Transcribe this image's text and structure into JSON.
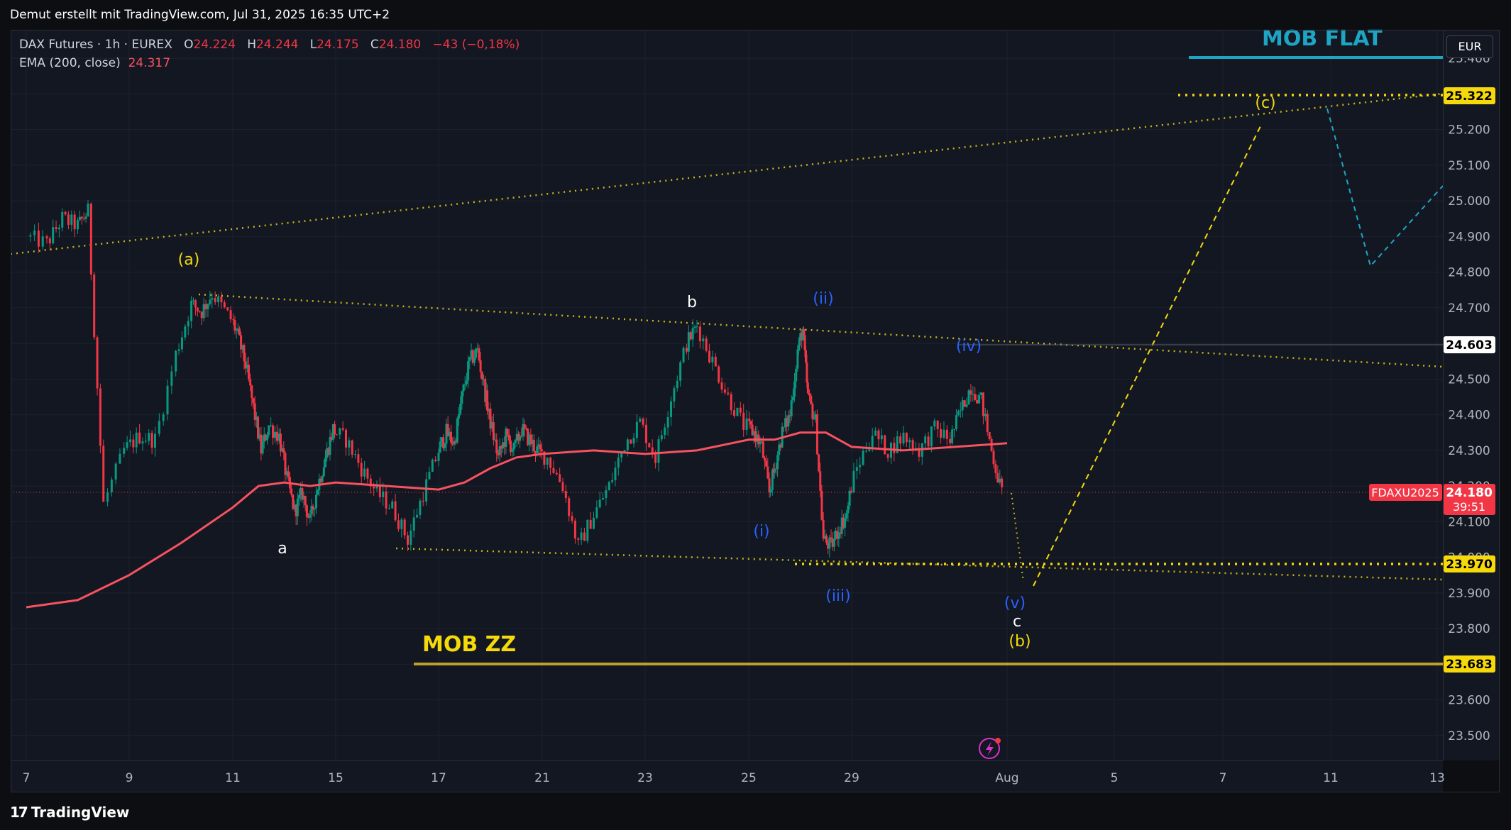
{
  "header": {
    "title": "Demut erstellt mit TradingView.com, Jul 31, 2025 16:35 UTC+2"
  },
  "legend": {
    "symbol": "DAX Futures · 1h · EUREX",
    "o_label": "O",
    "o_value": "24.224",
    "h_label": "H",
    "h_value": "24.244",
    "l_label": "L",
    "l_value": "24.175",
    "c_label": "C",
    "c_value": "24.180",
    "change": "−43 (−0,18%)",
    "ema_label": "EMA (200, close)",
    "ema_value": "24.317"
  },
  "currency_button": "EUR",
  "footer": {
    "brand": "TradingView"
  },
  "colors": {
    "background": "#131722",
    "up": "#089981",
    "down": "#f23645",
    "ema": "#f7525f",
    "yellow": "#f5d90a",
    "blue": "#2962ff",
    "teal": "#1fa5c4"
  },
  "chart_data": {
    "type": "candlestick",
    "instrument": "FDAXU2025",
    "timeframe": "1h",
    "ylim": [
      23.43,
      25.48
    ],
    "y_ticks": [
      "25.400",
      "25.300",
      "25.200",
      "25.100",
      "25.000",
      "24.900",
      "24.800",
      "24.700",
      "24.600",
      "24.500",
      "24.400",
      "24.300",
      "24.200",
      "24.100",
      "24.000",
      "23.900",
      "23.800",
      "23.700",
      "23.600",
      "23.500"
    ],
    "y_tick_values": [
      25.4,
      25.3,
      25.2,
      25.1,
      25.0,
      24.9,
      24.8,
      24.7,
      24.6,
      24.5,
      24.4,
      24.3,
      24.2,
      24.1,
      24.0,
      23.9,
      23.8,
      23.7,
      23.6,
      23.5
    ],
    "x_ticks": [
      "7",
      "9",
      "11",
      "15",
      "17",
      "21",
      "23",
      "25",
      "29",
      "Aug",
      "5",
      "7",
      "11",
      "13"
    ],
    "price_path": [
      [
        7,
        24.9
      ],
      [
        7.4,
        24.88
      ],
      [
        7.7,
        24.95
      ],
      [
        8.0,
        24.93
      ],
      [
        8.2,
        24.97
      ],
      [
        8.5,
        24.15
      ],
      [
        8.9,
        24.3
      ],
      [
        9.2,
        24.34
      ],
      [
        9.5,
        24.33
      ],
      [
        9.9,
        24.57
      ],
      [
        10.2,
        24.71
      ],
      [
        10.4,
        24.69
      ],
      [
        10.6,
        24.74
      ],
      [
        10.9,
        24.68
      ],
      [
        11.2,
        24.62
      ],
      [
        11.5,
        24.54
      ],
      [
        11.8,
        24.42
      ],
      [
        12.1,
        24.3
      ],
      [
        12.4,
        24.37
      ],
      [
        12.8,
        24.34
      ],
      [
        13.1,
        24.22
      ],
      [
        13.4,
        24.13
      ],
      [
        13.7,
        24.18
      ],
      [
        14.0,
        24.1
      ],
      [
        14.3,
        24.2
      ],
      [
        14.6,
        24.28
      ],
      [
        14.9,
        24.36
      ],
      [
        15.2,
        24.33
      ],
      [
        15.5,
        24.25
      ],
      [
        15.8,
        24.18
      ],
      [
        16.1,
        24.14
      ],
      [
        16.4,
        24.05
      ],
      [
        16.7,
        24.18
      ],
      [
        17.0,
        24.3
      ],
      [
        17.3,
        24.35
      ],
      [
        17.6,
        24.32
      ],
      [
        17.9,
        24.45
      ],
      [
        18.2,
        24.55
      ],
      [
        18.5,
        24.58
      ],
      [
        18.8,
        24.46
      ],
      [
        19.0,
        24.38
      ],
      [
        19.3,
        24.28
      ],
      [
        19.6,
        24.34
      ],
      [
        19.9,
        24.3
      ],
      [
        20.2,
        24.36
      ],
      [
        20.5,
        24.33
      ],
      [
        20.8,
        24.3
      ],
      [
        21.1,
        24.28
      ],
      [
        21.4,
        24.2
      ],
      [
        21.7,
        24.03
      ],
      [
        22.0,
        24.12
      ],
      [
        22.3,
        24.2
      ],
      [
        22.6,
        24.32
      ],
      [
        22.9,
        24.38
      ],
      [
        23.2,
        24.28
      ],
      [
        23.5,
        24.45
      ],
      [
        23.8,
        24.6
      ],
      [
        24.0,
        24.65
      ],
      [
        24.3,
        24.55
      ],
      [
        24.6,
        24.45
      ],
      [
        24.9,
        24.37
      ],
      [
        25.2,
        24.35
      ],
      [
        25.5,
        24.31
      ],
      [
        25.8,
        24.18
      ],
      [
        26.0,
        24.25
      ],
      [
        26.3,
        24.35
      ],
      [
        26.6,
        24.4
      ],
      [
        26.9,
        24.58
      ],
      [
        27.1,
        24.64
      ],
      [
        27.3,
        24.45
      ],
      [
        27.6,
        24.38
      ],
      [
        27.9,
        24.05
      ],
      [
        28.2,
        24.03
      ],
      [
        28.5,
        24.08
      ],
      [
        28.8,
        24.12
      ],
      [
        29.1,
        24.25
      ],
      [
        29.4,
        24.35
      ],
      [
        29.7,
        24.3
      ],
      [
        30.0,
        24.34
      ],
      [
        30.3,
        24.3
      ],
      [
        30.6,
        24.36
      ],
      [
        30.9,
        24.33
      ],
      [
        31.1,
        24.41
      ],
      [
        31.3,
        24.48
      ],
      [
        31.5,
        24.44
      ],
      [
        31.7,
        24.3
      ],
      [
        31.9,
        24.18
      ]
    ],
    "ema_path": [
      [
        7,
        23.86
      ],
      [
        8,
        23.88
      ],
      [
        9,
        23.95
      ],
      [
        10,
        24.04
      ],
      [
        11,
        24.14
      ],
      [
        12,
        24.2
      ],
      [
        13,
        24.21
      ],
      [
        14,
        24.2
      ],
      [
        15,
        24.21
      ],
      [
        16,
        24.2
      ],
      [
        17,
        24.19
      ],
      [
        18,
        24.21
      ],
      [
        19,
        24.25
      ],
      [
        20,
        24.28
      ],
      [
        21,
        24.29
      ],
      [
        22,
        24.3
      ],
      [
        23,
        24.29
      ],
      [
        24,
        24.3
      ],
      [
        25,
        24.33
      ],
      [
        26,
        24.33
      ],
      [
        27,
        24.35
      ],
      [
        28,
        24.35
      ],
      [
        29,
        24.31
      ],
      [
        30,
        24.3
      ],
      [
        31,
        24.31
      ],
      [
        32,
        24.32
      ]
    ],
    "horizontal_levels": [
      {
        "label": "MOB FLAT",
        "price_label": "",
        "value": 25.44
      },
      {
        "label": "",
        "price_label": "25.322",
        "value": 25.322
      },
      {
        "label": "",
        "price_label": "24.603",
        "value": 24.603
      },
      {
        "label": "",
        "price_label": "23.970",
        "value": 23.97
      },
      {
        "label": "MOB ZZ",
        "price_label": "23.683",
        "value": 23.683
      }
    ],
    "last_price": {
      "symbol": "FDAXU2025",
      "value": "24.180",
      "countdown": "39:51"
    },
    "wave_labels": [
      "(a)",
      "a",
      "b",
      "c",
      "(b)",
      "(c)",
      "(i)",
      "(ii)",
      "(iii)",
      "(iv)",
      "(v)"
    ]
  }
}
